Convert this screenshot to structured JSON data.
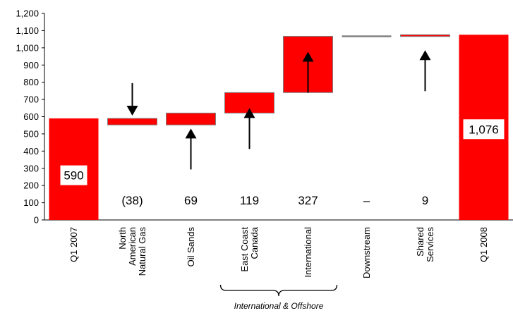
{
  "chart_data": {
    "type": "bar",
    "subtype": "waterfall",
    "ylim": [
      0,
      1200
    ],
    "yticks": [
      "0",
      "100",
      "200",
      "300",
      "400",
      "500",
      "600",
      "700",
      "800",
      "900",
      "1,000",
      "1,100",
      "1,200"
    ],
    "bar_color": "#ff0000",
    "neutral_color": "#808080",
    "categories": [
      {
        "label_lines": [
          "Q1 2007"
        ],
        "type": "total",
        "value": 590,
        "value_label": "590",
        "label_style": "box"
      },
      {
        "label_lines": [
          "North",
          "American",
          "Natural Gas"
        ],
        "type": "delta",
        "from": 590,
        "to": 552,
        "value": -38,
        "value_label": "(38)",
        "arrow": "down"
      },
      {
        "label_lines": [
          "Oil Sands"
        ],
        "type": "delta",
        "from": 552,
        "to": 621,
        "value": 69,
        "value_label": "69",
        "arrow": "up"
      },
      {
        "label_lines": [
          "East Coast",
          "Canada"
        ],
        "type": "delta",
        "from": 621,
        "to": 740,
        "value": 119,
        "value_label": "119",
        "arrow": "up"
      },
      {
        "label_lines": [
          "International"
        ],
        "type": "delta",
        "from": 740,
        "to": 1067,
        "value": 327,
        "value_label": "327",
        "arrow": "up"
      },
      {
        "label_lines": [
          "Downstream"
        ],
        "type": "flat",
        "from": 1067,
        "to": 1067,
        "value": 0,
        "value_label": "–"
      },
      {
        "label_lines": [
          "Shared",
          "Services"
        ],
        "type": "delta",
        "from": 1067,
        "to": 1076,
        "value": 9,
        "value_label": "9",
        "arrow": "up"
      },
      {
        "label_lines": [
          "Q1 2008"
        ],
        "type": "total",
        "value": 1076,
        "value_label": "1,076",
        "label_style": "box"
      }
    ],
    "group_bracket": {
      "label": "International & Offshore",
      "from_index": 3,
      "to_index": 4
    }
  }
}
